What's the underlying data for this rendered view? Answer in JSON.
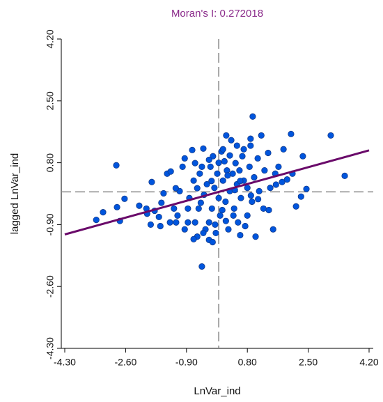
{
  "chart_data": {
    "type": "scatter",
    "title": "Moran's I: 0.272018",
    "x_label": "LnVar_ind",
    "y_label": "lagged LnVar_ind",
    "xlim": [
      -4.3,
      4.2
    ],
    "ylim": [
      -4.3,
      4.2
    ],
    "xticks": [
      {
        "value": -4.3,
        "label": "-4.30"
      },
      {
        "value": -2.6,
        "label": "-2.60"
      },
      {
        "value": -0.9,
        "label": "-0.90"
      },
      {
        "value": 0.8,
        "label": "0.80"
      },
      {
        "value": 2.5,
        "label": "2.50"
      },
      {
        "value": 4.2,
        "label": "4.20"
      }
    ],
    "yticks": [
      {
        "value": -4.3,
        "label": "-4.30"
      },
      {
        "value": -2.6,
        "label": "-2.60"
      },
      {
        "value": -0.9,
        "label": "-0.90"
      },
      {
        "value": 0.8,
        "label": "0.80"
      },
      {
        "value": 2.5,
        "label": "2.50"
      },
      {
        "value": 4.2,
        "label": "4.20"
      }
    ],
    "point_color": "#0055dd",
    "line_color": "#6a0a6a",
    "fit_line": {
      "x": [
        -4.3,
        4.2
      ],
      "y": [
        -1.17,
        1.14
      ]
    },
    "reference_lines": {
      "x": 0,
      "y": 0
    },
    "x": [
      -3.42,
      -3.23,
      -2.86,
      -2.84,
      -2.76,
      -2.63,
      -2.22,
      -2.02,
      -1.87,
      -1.79,
      -1.67,
      -1.63,
      -1.54,
      -1.44,
      -1.34,
      -1.25,
      -1.19,
      -1.09,
      -1.01,
      -0.95,
      -0.86,
      -0.82,
      -0.74,
      -0.7,
      -0.66,
      -0.6,
      -0.56,
      -0.53,
      -0.47,
      -0.43,
      -0.41,
      -0.37,
      -0.33,
      -0.27,
      -0.23,
      -0.19,
      -0.16,
      -0.12,
      -0.08,
      -0.04,
      0.0,
      0.04,
      0.08,
      0.12,
      0.16,
      0.19,
      0.23,
      0.27,
      0.31,
      0.35,
      0.39,
      0.43,
      0.47,
      0.51,
      0.54,
      0.58,
      0.62,
      0.66,
      0.7,
      0.74,
      0.8,
      0.86,
      0.89,
      0.93,
      0.95,
      0.99,
      1.03,
      1.09,
      1.13,
      1.19,
      1.25,
      1.28,
      1.38,
      1.44,
      1.52,
      1.58,
      1.67,
      1.77,
      1.81,
      1.91,
      2.02,
      2.06,
      2.16,
      2.3,
      2.35,
      2.45,
      3.13,
      3.52,
      -0.43,
      -0.17,
      -1.15,
      -1.36,
      -0.86,
      -0.27,
      0.41,
      0.8,
      0.6,
      -0.47,
      -0.27,
      0.12,
      0.31,
      0.51,
      0.7,
      0.89,
      0.21,
      -0.95,
      -0.66,
      -1.2,
      -0.5,
      0.1,
      0.6,
      0.45,
      -0.2,
      0.25,
      1.1,
      1.4,
      -1.6,
      -2.0,
      -1.9,
      -0.7,
      0.0,
      0.2,
      -0.1,
      0.9,
      1.6,
      -0.6
    ],
    "y": [
      -0.77,
      -0.56,
      0.73,
      -0.42,
      -0.8,
      -0.19,
      -0.38,
      -0.46,
      0.27,
      -0.52,
      -0.69,
      -0.94,
      -0.04,
      0.5,
      0.56,
      -0.46,
      -0.84,
      0.02,
      0.69,
      -1.03,
      -0.46,
      -0.17,
      1.15,
      0.31,
      -0.84,
      -1.23,
      -0.46,
      0.5,
      -2.05,
      1.19,
      -0.08,
      -1.03,
      0.21,
      -1.32,
      0.69,
      -0.46,
      0.98,
      0.11,
      -1.13,
      0.5,
      -0.17,
      -0.65,
      1.11,
      0.31,
      0.84,
      -0.27,
      0.59,
      -1.03,
      0.02,
      1.42,
      0.5,
      -0.46,
      0.79,
      0.21,
      -0.84,
      0.59,
      -0.17,
      0.98,
      0.31,
      -0.94,
      0.11,
      0.69,
      1.46,
      -0.27,
      2.07,
      0.4,
      -1.23,
      0.92,
      0.02,
      1.55,
      -0.46,
      0.59,
      1.07,
      0.11,
      -1.03,
      0.5,
      0.69,
      0.27,
      1.17,
      0.34,
      1.59,
      0.5,
      -0.4,
      -0.13,
      0.98,
      0.08,
      1.55,
      0.44,
      -1.13,
      -1.38,
      -0.65,
      -0.84,
      -0.84,
      -0.84,
      -0.65,
      -0.65,
      -1.19,
      0.69,
      0.88,
      1.17,
      1.0,
      1.27,
      1.17,
      1.27,
      1.55,
      0.92,
      0.79,
      0.1,
      -0.3,
      -0.5,
      0.3,
      0.05,
      0.3,
      0.45,
      -0.2,
      -0.5,
      -0.3,
      -0.6,
      -0.9,
      -1.3,
      0.8,
      -0.8,
      -0.9,
      -0.1,
      0.2,
      0.1
    ]
  }
}
